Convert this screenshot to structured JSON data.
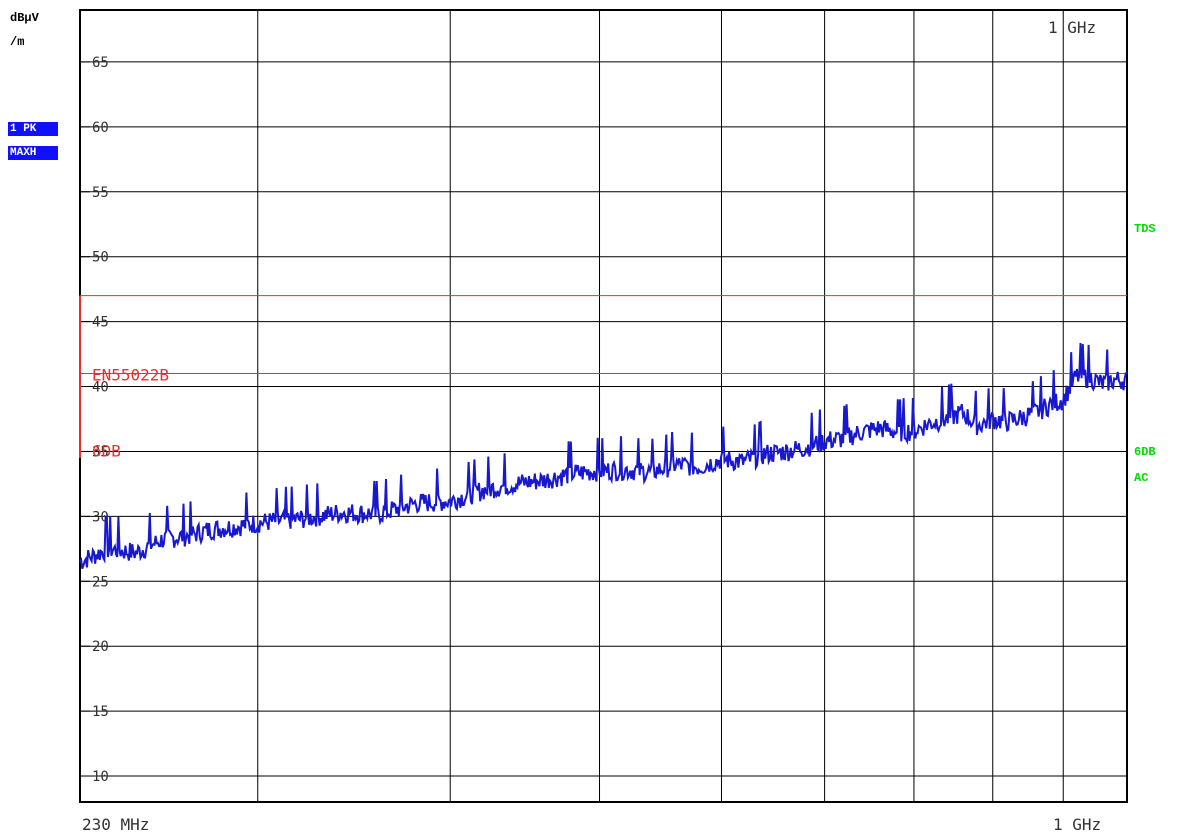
{
  "header": {
    "unit_line1": "dBµV",
    "unit_line2": "/m",
    "trace_badge_line1": "1 PK",
    "trace_badge_line2": "MAXH"
  },
  "right_labels": {
    "tds": "TDS",
    "acc_line1": "6DB",
    "acc_line2": "AC"
  },
  "colors": {
    "trace": "#1818d0",
    "limit": "#e83030",
    "grid": "#000000",
    "badge_bg": "#1010ff",
    "status_green": "#00dd00"
  },
  "chart_data": {
    "type": "line",
    "title": "",
    "xlabel": "",
    "ylabel": "dBµV/m",
    "x_scale": "log",
    "xlim_mhz": [
      230,
      1100
    ],
    "ylim": [
      8,
      69
    ],
    "x_tick_labels": {
      "start": "230 MHz",
      "end": "1 GHz",
      "top_marker": "1 GHz"
    },
    "x_grid_mhz": [
      300,
      400,
      500,
      600,
      700,
      800,
      900,
      1000
    ],
    "y_ticks": [
      10,
      15,
      20,
      25,
      30,
      35,
      40,
      45,
      50,
      55,
      60,
      65
    ],
    "grid": true,
    "limit_lines": [
      {
        "name": "EN55022B",
        "value": 47
      },
      {
        "name": "6DB",
        "value": 41
      }
    ],
    "series": [
      {
        "x_mhz": [
          230,
          240,
          250,
          260,
          270,
          280,
          290,
          300,
          320,
          340,
          360,
          380,
          400,
          420,
          440,
          460,
          480,
          500,
          520,
          540,
          560,
          580,
          600,
          620,
          640,
          660,
          680,
          700,
          720,
          740,
          760,
          780,
          800,
          820,
          840,
          860,
          880,
          900,
          920,
          940,
          960,
          980,
          1000,
          1020,
          1040,
          1060,
          1080,
          1100
        ],
        "values": [
          26.5,
          27.5,
          27.2,
          28.2,
          28.5,
          29.0,
          29.2,
          29.5,
          29.8,
          30.3,
          30.2,
          31.0,
          31.2,
          32.0,
          32.5,
          32.8,
          33.3,
          33.5,
          33.6,
          33.4,
          34.0,
          33.8,
          34.4,
          34.2,
          34.8,
          35.0,
          35.3,
          35.8,
          36.0,
          36.5,
          36.8,
          36.5,
          36.6,
          37.2,
          37.5,
          38.0,
          37.0,
          37.5,
          37.3,
          37.6,
          38.0,
          38.6,
          39.0,
          40.8,
          40.7,
          40.2,
          40.5,
          40.5
        ]
      }
    ]
  }
}
